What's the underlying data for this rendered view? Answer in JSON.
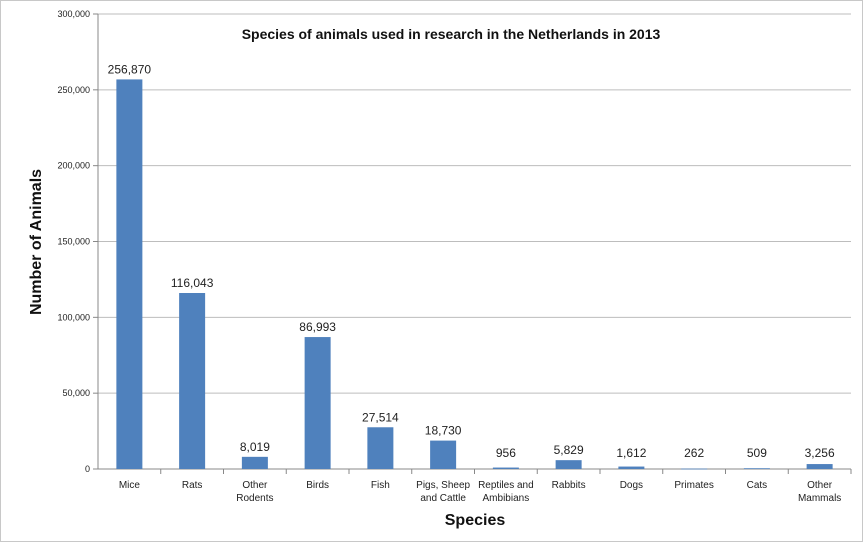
{
  "chart_data": {
    "type": "bar",
    "title": "Species of animals used in research in the Netherlands in 2013",
    "xlabel": "Species",
    "ylabel": "Number of Animals",
    "ylim": [
      0,
      300000
    ],
    "yticks": [
      "0",
      "50,000",
      "100,000",
      "150,000",
      "200,000",
      "250,000",
      "300,000"
    ],
    "ytick_values": [
      0,
      50000,
      100000,
      150000,
      200000,
      250000,
      300000
    ],
    "grid": true,
    "categories": [
      "Mice",
      "Rats",
      "Other Rodents",
      "Birds",
      "Fish",
      "Pigs, Sheep and Cattle",
      "Reptiles and Ambibians",
      "Rabbits",
      "Dogs",
      "Primates",
      "Cats",
      "Other Mammals"
    ],
    "values": [
      256870,
      116043,
      8019,
      86993,
      27514,
      18730,
      956,
      5829,
      1612,
      262,
      509,
      3256
    ],
    "data_labels": [
      "256,870",
      "116,043",
      "8,019",
      "86,993",
      "27,514",
      "18,730",
      "956",
      "5,829",
      "1,612",
      "262",
      "509",
      "3,256"
    ],
    "bar_color": "#4f81bd"
  }
}
